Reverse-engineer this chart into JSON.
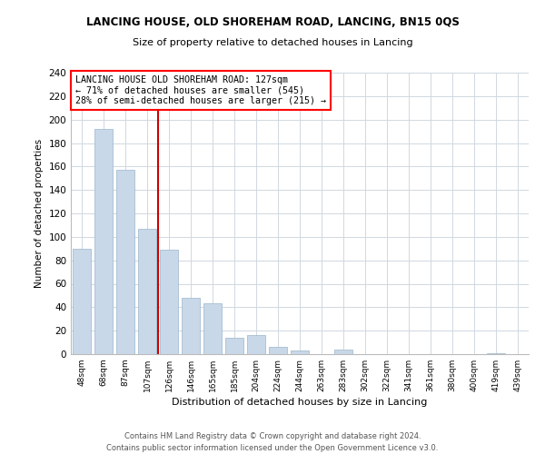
{
  "title": "LANCING HOUSE, OLD SHOREHAM ROAD, LANCING, BN15 0QS",
  "subtitle": "Size of property relative to detached houses in Lancing",
  "xlabel": "Distribution of detached houses by size in Lancing",
  "ylabel": "Number of detached properties",
  "bar_color": "#c8d8e8",
  "bar_edge_color": "#9ab5cc",
  "categories": [
    "48sqm",
    "68sqm",
    "87sqm",
    "107sqm",
    "126sqm",
    "146sqm",
    "165sqm",
    "185sqm",
    "204sqm",
    "224sqm",
    "244sqm",
    "263sqm",
    "283sqm",
    "302sqm",
    "322sqm",
    "341sqm",
    "361sqm",
    "380sqm",
    "400sqm",
    "419sqm",
    "439sqm"
  ],
  "values": [
    90,
    192,
    157,
    107,
    89,
    48,
    43,
    14,
    16,
    6,
    3,
    0,
    4,
    0,
    0,
    0,
    0,
    0,
    0,
    1,
    0
  ],
  "ylim": [
    0,
    240
  ],
  "yticks": [
    0,
    20,
    40,
    60,
    80,
    100,
    120,
    140,
    160,
    180,
    200,
    220,
    240
  ],
  "marker_label_line1": "LANCING HOUSE OLD SHOREHAM ROAD: 127sqm",
  "marker_label_line2": "← 71% of detached houses are smaller (545)",
  "marker_label_line3": "28% of semi-detached houses are larger (215) →",
  "vline_color": "#cc0000",
  "background_color": "#ffffff",
  "grid_color": "#d0d8e0",
  "footer_line1": "Contains HM Land Registry data © Crown copyright and database right 2024.",
  "footer_line2": "Contains public sector information licensed under the Open Government Licence v3.0."
}
